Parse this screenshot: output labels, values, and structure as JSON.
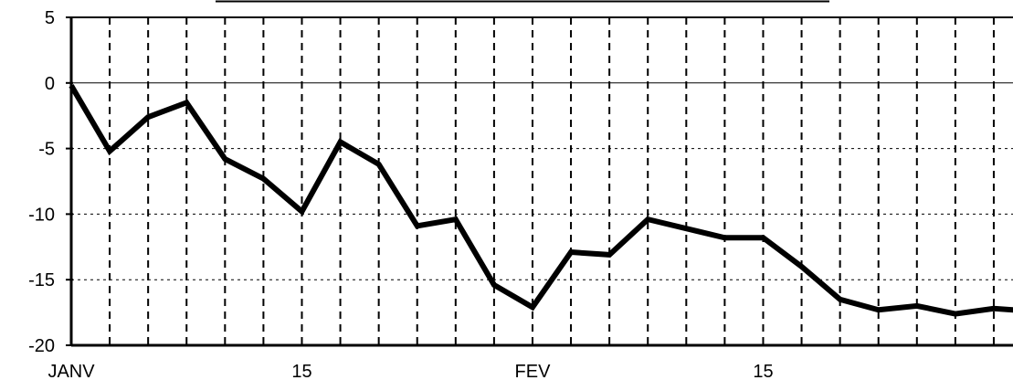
{
  "chart_data": {
    "type": "line",
    "title": "",
    "xlabel": "",
    "ylabel": "",
    "ylim": [
      -20,
      5
    ],
    "yticks": [
      5,
      0,
      -5,
      -10,
      -15,
      -20
    ],
    "ytick_labels": [
      "5",
      "0",
      "-5",
      "-10",
      "-15",
      "-20"
    ],
    "x_tick_labels": [
      {
        "label": "JANV",
        "x": 0
      },
      {
        "label": "15",
        "x": 6
      },
      {
        "label": "FEV",
        "x": 12
      },
      {
        "label": "15",
        "x": 18
      }
    ],
    "x": [
      0,
      1,
      2,
      3,
      4,
      5,
      6,
      7,
      8,
      9,
      10,
      11,
      12,
      13,
      14,
      15,
      16,
      17,
      18,
      19,
      20,
      21,
      22,
      23,
      24,
      25
    ],
    "xlim": [
      0,
      24.5
    ],
    "values": [
      -0.2,
      -5.2,
      -2.6,
      -1.5,
      -5.8,
      -7.3,
      -9.8,
      -4.5,
      -6.2,
      -10.9,
      -10.4,
      -15.4,
      -17.1,
      -12.9,
      -13.1,
      -10.4,
      -11.1,
      -11.8,
      -11.8,
      -14.0,
      -16.5,
      -17.3,
      -17.0,
      -17.6,
      -17.2,
      -17.4
    ],
    "grid": true,
    "legend": "none",
    "colors": {
      "line": "#000000",
      "grid": "#000000",
      "background": "#ffffff"
    }
  }
}
